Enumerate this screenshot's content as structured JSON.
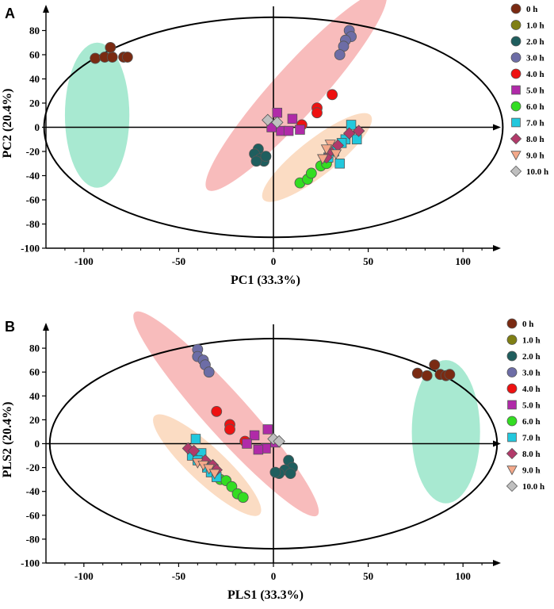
{
  "chart_data": [
    {
      "panel": "A",
      "type": "scatter",
      "xlabel": "PC1 (33.3%)",
      "ylabel": "PC2 (20.4%)",
      "xlim": [
        -120,
        120
      ],
      "ylim": [
        -100,
        100
      ],
      "xticks": [
        -100,
        -50,
        0,
        50,
        100
      ],
      "yticks": [
        -100,
        -80,
        -60,
        -40,
        -20,
        0,
        20,
        40,
        60,
        80
      ],
      "confidence_ellipse": {
        "cx": 0,
        "cy": 0,
        "rx": 121,
        "ry": 91
      },
      "clusters": [
        {
          "color": "#3ecf9a",
          "cx": -93,
          "cy": 10,
          "rx": 17,
          "ry": 60,
          "angle": 0
        },
        {
          "color": "#f06a6a",
          "cx": 12,
          "cy": 30,
          "rx": 70,
          "ry": 20,
          "angle": 48
        },
        {
          "color": "#f7b27a",
          "cx": 23,
          "cy": -25,
          "rx": 36,
          "ry": 15,
          "angle": 38
        }
      ],
      "series": [
        {
          "name": "0 h",
          "marker": "circle",
          "color": "#7a2a12",
          "points": [
            [
              -94,
              57
            ],
            [
              -89,
              58
            ],
            [
              -85,
              58
            ],
            [
              -86,
              66
            ],
            [
              -79,
              58
            ],
            [
              -77,
              58
            ]
          ]
        },
        {
          "name": "1.0 h",
          "marker": "circle",
          "color": "#7f7f14",
          "points": []
        },
        {
          "name": "2.0 h",
          "marker": "circle",
          "color": "#1f5e5e",
          "points": [
            [
              -8,
              -18
            ],
            [
              -10,
              -22
            ],
            [
              -7,
              -26
            ],
            [
              -5,
              -28
            ],
            [
              -4,
              -24
            ],
            [
              -9,
              -28
            ]
          ]
        },
        {
          "name": "3.0 h",
          "marker": "circle",
          "color": "#6d6da6",
          "points": [
            [
              40,
              80
            ],
            [
              41,
              75
            ],
            [
              38,
              72
            ],
            [
              37,
              67
            ],
            [
              35,
              60
            ]
          ]
        },
        {
          "name": "4.0 h",
          "marker": "circle",
          "color": "#ee1111",
          "points": [
            [
              31,
              27
            ],
            [
              23,
              16
            ],
            [
              23,
              12
            ],
            [
              15,
              2
            ]
          ]
        },
        {
          "name": "5.0 h",
          "marker": "square",
          "color": "#b02aa8",
          "points": [
            [
              2,
              12
            ],
            [
              10,
              7
            ],
            [
              -1,
              0
            ],
            [
              4,
              -3
            ],
            [
              8,
              -3
            ],
            [
              14,
              -2
            ]
          ]
        },
        {
          "name": "6.0 h",
          "marker": "circle",
          "color": "#33dd22",
          "points": [
            [
              14,
              -46
            ],
            [
              18,
              -43
            ],
            [
              20,
              -38
            ],
            [
              25,
              -32
            ],
            [
              28,
              -30
            ]
          ]
        },
        {
          "name": "7.0 h",
          "marker": "square",
          "color": "#22c8dd",
          "points": [
            [
              41,
              2
            ],
            [
              38,
              -10
            ],
            [
              44,
              -10
            ],
            [
              36,
              -13
            ],
            [
              32,
              -20
            ],
            [
              29,
              -25
            ],
            [
              35,
              -30
            ]
          ]
        },
        {
          "name": "8.0 h",
          "marker": "diamond",
          "color": "#b23a6a",
          "points": [
            [
              45,
              -3
            ],
            [
              40,
              -5
            ],
            [
              34,
              -15
            ],
            [
              30,
              -20
            ],
            [
              28,
              -25
            ]
          ]
        },
        {
          "name": "9.0 h",
          "marker": "triangle-down",
          "color": "#f4a98a",
          "points": [
            [
              30,
              -14
            ],
            [
              28,
              -18
            ],
            [
              33,
              -22
            ],
            [
              26,
              -26
            ]
          ]
        },
        {
          "name": "10.0 h",
          "marker": "diamond",
          "color": "#bfbfbf",
          "points": [
            [
              -3,
              6
            ],
            [
              2,
              4
            ]
          ]
        }
      ]
    },
    {
      "panel": "B",
      "type": "scatter",
      "xlabel": "PLS1 (33.3%)",
      "ylabel": "PLS2 (20.4%)",
      "xlim": [
        -120,
        120
      ],
      "ylim": [
        -100,
        100
      ],
      "xticks": [
        -100,
        -50,
        0,
        50,
        100
      ],
      "yticks": [
        -100,
        -80,
        -60,
        -40,
        -20,
        0,
        20,
        40,
        60,
        80
      ],
      "confidence_ellipse": {
        "cx": 0,
        "cy": 0,
        "rx": 118,
        "ry": 88
      },
      "clusters": [
        {
          "color": "#3ecf9a",
          "cx": 91,
          "cy": 10,
          "rx": 18,
          "ry": 60,
          "angle": 0
        },
        {
          "color": "#f06a6a",
          "cx": -25,
          "cy": 25,
          "rx": 72,
          "ry": 18,
          "angle": -48
        },
        {
          "color": "#f7b27a",
          "cx": -35,
          "cy": -18,
          "rx": 38,
          "ry": 15,
          "angle": -43
        }
      ],
      "series": [
        {
          "name": "0 h",
          "marker": "circle",
          "color": "#7a2a12",
          "points": [
            [
              76,
              59
            ],
            [
              81,
              57
            ],
            [
              85,
              66
            ],
            [
              88,
              58
            ],
            [
              91,
              57
            ],
            [
              93,
              58
            ]
          ]
        },
        {
          "name": "1.0 h",
          "marker": "circle",
          "color": "#7f7f14",
          "points": []
        },
        {
          "name": "2.0 h",
          "marker": "circle",
          "color": "#1f5e5e",
          "points": [
            [
              8,
              -14
            ],
            [
              10,
              -20
            ],
            [
              6,
              -22
            ],
            [
              3,
              -25
            ],
            [
              1,
              -24
            ],
            [
              9,
              -25
            ]
          ]
        },
        {
          "name": "3.0 h",
          "marker": "circle",
          "color": "#6d6da6",
          "points": [
            [
              -40,
              79
            ],
            [
              -40,
              73
            ],
            [
              -37,
              70
            ],
            [
              -36,
              66
            ],
            [
              -34,
              60
            ]
          ]
        },
        {
          "name": "4.0 h",
          "marker": "circle",
          "color": "#ee1111",
          "points": [
            [
              -30,
              27
            ],
            [
              -23,
              16
            ],
            [
              -23,
              12
            ],
            [
              -15,
              2
            ]
          ]
        },
        {
          "name": "5.0 h",
          "marker": "square",
          "color": "#b02aa8",
          "points": [
            [
              -10,
              7
            ],
            [
              -3,
              12
            ],
            [
              1,
              1
            ],
            [
              -4,
              -4
            ],
            [
              -8,
              -5
            ],
            [
              -14,
              0
            ]
          ]
        },
        {
          "name": "6.0 h",
          "marker": "circle",
          "color": "#33dd22",
          "points": [
            [
              -28,
              -30
            ],
            [
              -25,
              -31
            ],
            [
              -22,
              -36
            ],
            [
              -19,
              -42
            ],
            [
              -16,
              -45
            ]
          ]
        },
        {
          "name": "7.0 h",
          "marker": "square",
          "color": "#22c8dd",
          "points": [
            [
              -41,
              4
            ],
            [
              -43,
              -10
            ],
            [
              -38,
              -8
            ],
            [
              -40,
              -14
            ],
            [
              -35,
              -20
            ],
            [
              -33,
              -24
            ],
            [
              -30,
              -28
            ]
          ]
        },
        {
          "name": "8.0 h",
          "marker": "diamond",
          "color": "#b23a6a",
          "points": [
            [
              -45,
              -4
            ],
            [
              -42,
              -6
            ],
            [
              -36,
              -14
            ],
            [
              -32,
              -18
            ],
            [
              -30,
              -22
            ]
          ]
        },
        {
          "name": "9.0 h",
          "marker": "triangle-down",
          "color": "#f4a98a",
          "points": [
            [
              -40,
              -16
            ],
            [
              -37,
              -18
            ],
            [
              -34,
              -21
            ],
            [
              -31,
              -25
            ]
          ]
        },
        {
          "name": "10.0 h",
          "marker": "diamond",
          "color": "#bfbfbf",
          "points": [
            [
              0,
              4
            ],
            [
              3,
              2
            ]
          ]
        }
      ]
    }
  ]
}
